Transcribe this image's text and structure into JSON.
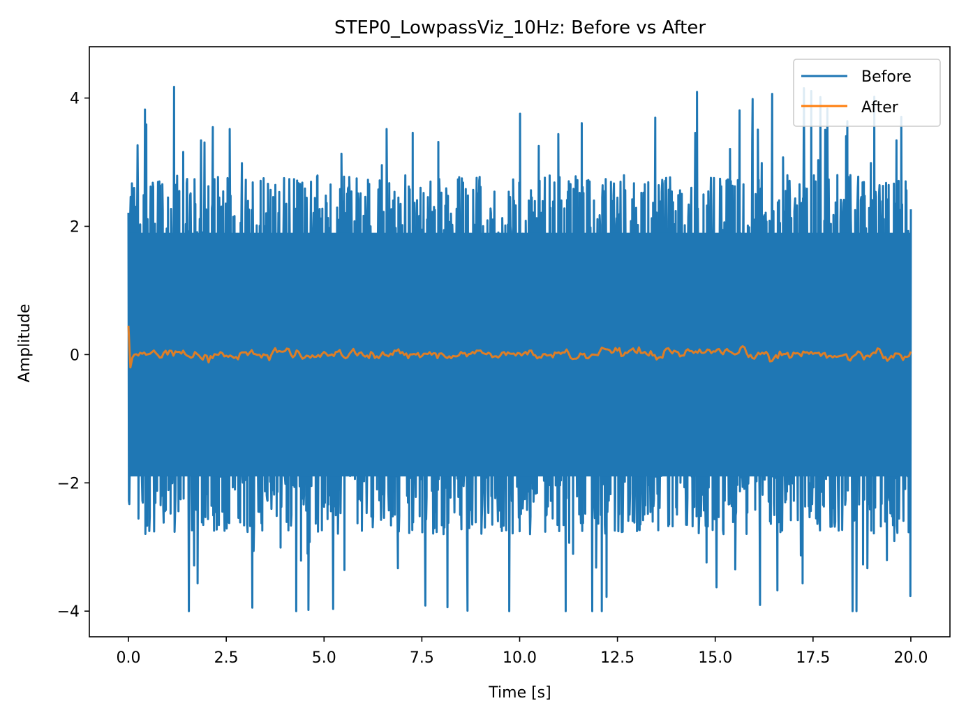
{
  "chart_data": {
    "type": "line",
    "title": "STEP0_LowpassViz_10Hz: Before vs After",
    "xlabel": "Time [s]",
    "ylabel": "Amplitude",
    "xlim": [
      -1.0,
      21.0
    ],
    "ylim": [
      -4.4,
      4.8
    ],
    "xticks": [
      0.0,
      2.5,
      5.0,
      7.5,
      10.0,
      12.5,
      15.0,
      17.5,
      20.0
    ],
    "xtick_labels": [
      "0.0",
      "2.5",
      "5.0",
      "7.5",
      "10.0",
      "12.5",
      "15.0",
      "17.5",
      "20.0"
    ],
    "yticks": [
      -4,
      -2,
      0,
      2,
      4
    ],
    "ytick_labels": [
      "−4",
      "−2",
      "0",
      "2",
      "4"
    ],
    "legend_position": "top-right",
    "series": [
      {
        "name": "Before",
        "color": "#1f77b4",
        "x_range": [
          0.0,
          20.0
        ],
        "description_values": {
          "typical_min": -2.7,
          "typical_max": 2.9,
          "peak_max": 4.4,
          "peak_min": -4.0
        }
      },
      {
        "name": "After",
        "color": "#ff7f0e",
        "x_range": [
          0.0,
          20.0
        ],
        "description_values": {
          "typical_min": -0.2,
          "typical_max": 0.15,
          "start_value": 0.45
        }
      }
    ],
    "legend": [
      {
        "label": "Before",
        "color": "#1f77b4"
      },
      {
        "label": "After",
        "color": "#ff7f0e"
      }
    ]
  }
}
